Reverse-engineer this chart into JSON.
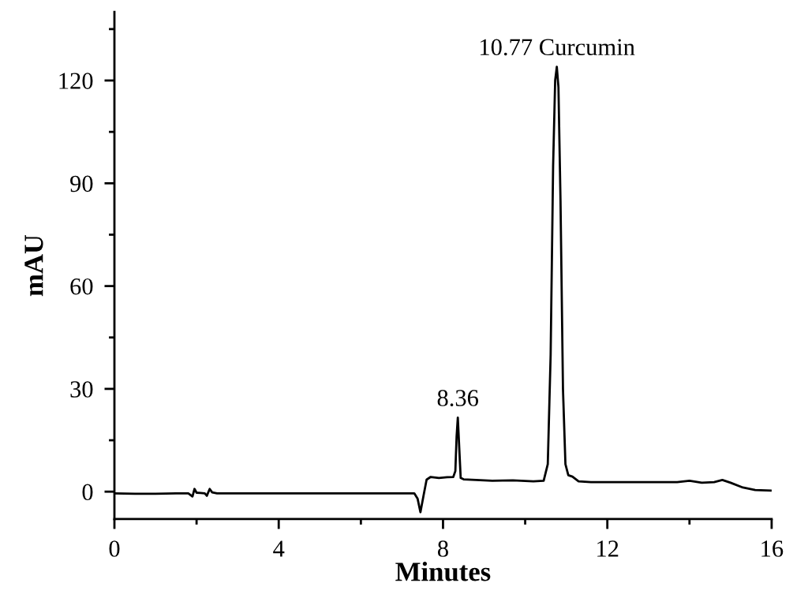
{
  "chart_data": {
    "type": "line",
    "xlabel": "Minutes",
    "ylabel": "mAU",
    "xlim": [
      0,
      16
    ],
    "ylim": [
      -8,
      140
    ],
    "xticks": [
      0,
      {
        "value": 2,
        "label": null
      },
      4,
      {
        "value": 6,
        "label": null
      },
      8,
      {
        "value": 10,
        "label": null
      },
      12,
      {
        "value": 14,
        "label": null
      },
      16
    ],
    "yticks": [
      0,
      {
        "value": 15,
        "label": null
      },
      30,
      {
        "value": 45,
        "label": null
      },
      60,
      {
        "value": 75,
        "label": null
      },
      90,
      {
        "value": 105,
        "label": null
      },
      120,
      {
        "value": 135,
        "label": null
      }
    ],
    "grid": false,
    "marker": "none",
    "line_style": "solid",
    "annotations": [
      {
        "text": "8.36",
        "x": 8.36,
        "y": 21.6
      },
      {
        "text": "10.77 Curcumin",
        "x": 10.77,
        "y": 124
      }
    ],
    "series": [
      {
        "color": "#000000",
        "x": [
          0,
          0.5,
          1.0,
          1.5,
          1.8,
          1.9,
          1.95,
          2.0,
          2.1,
          2.2,
          2.25,
          2.32,
          2.38,
          2.5,
          3.0,
          4.0,
          5.0,
          6.0,
          7.0,
          7.3,
          7.38,
          7.45,
          7.52,
          7.6,
          7.7,
          7.9,
          8.1,
          8.25,
          8.3,
          8.33,
          8.36,
          8.39,
          8.43,
          8.5,
          8.8,
          9.2,
          9.7,
          10.2,
          10.45,
          10.55,
          10.62,
          10.68,
          10.73,
          10.77,
          10.81,
          10.86,
          10.92,
          10.98,
          11.05,
          11.15,
          11.3,
          11.6,
          12.0,
          13.0,
          13.7,
          14.0,
          14.3,
          14.6,
          14.8,
          15.0,
          15.3,
          15.6,
          16.0
        ],
        "values": [
          -0.5,
          -0.6,
          -0.6,
          -0.5,
          -0.5,
          -1.4,
          0.8,
          -0.3,
          -0.4,
          -0.5,
          -1.2,
          0.8,
          -0.2,
          -0.5,
          -0.5,
          -0.5,
          -0.5,
          -0.5,
          -0.5,
          -0.5,
          -2,
          -6,
          -1.5,
          3.5,
          4.3,
          4.0,
          4.2,
          4.3,
          6,
          16,
          21.6,
          14,
          4,
          3.6,
          3.4,
          3.2,
          3.3,
          3.0,
          3.2,
          8,
          40,
          95,
          120,
          124,
          118,
          85,
          30,
          8,
          4.8,
          4.4,
          3.0,
          2.8,
          2.8,
          2.8,
          2.8,
          3.2,
          2.6,
          2.8,
          3.4,
          2.6,
          1.2,
          0.5,
          0.3
        ]
      }
    ]
  }
}
